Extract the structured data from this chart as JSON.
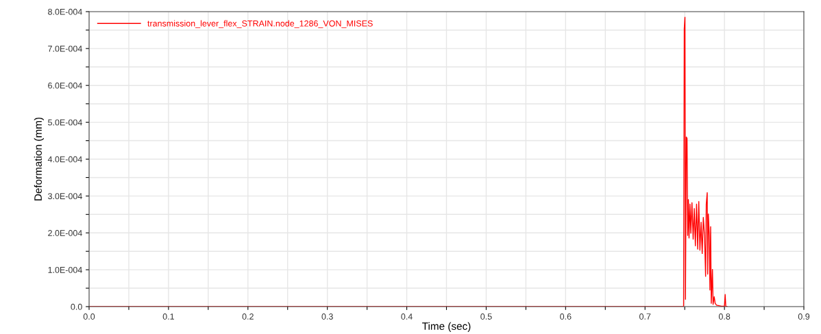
{
  "chart_data": {
    "type": "line",
    "xlabel": "Time (sec)",
    "ylabel": "Deformation (mm)",
    "xlim": [
      0,
      0.9
    ],
    "ylim": [
      0,
      0.0008
    ],
    "xticks": [
      {
        "value": 0,
        "label": "0.0"
      },
      {
        "value": 0.05,
        "label": null
      },
      {
        "value": 0.1,
        "label": "0.1"
      },
      {
        "value": 0.15,
        "label": null
      },
      {
        "value": 0.2,
        "label": "0.2"
      },
      {
        "value": 0.25,
        "label": null
      },
      {
        "value": 0.3,
        "label": "0.3"
      },
      {
        "value": 0.35,
        "label": null
      },
      {
        "value": 0.4,
        "label": "0.4"
      },
      {
        "value": 0.45,
        "label": null
      },
      {
        "value": 0.5,
        "label": "0.5"
      },
      {
        "value": 0.55,
        "label": null
      },
      {
        "value": 0.6,
        "label": "0.6"
      },
      {
        "value": 0.65,
        "label": null
      },
      {
        "value": 0.7,
        "label": "0.7"
      },
      {
        "value": 0.75,
        "label": null
      },
      {
        "value": 0.8,
        "label": "0.8"
      },
      {
        "value": 0.85,
        "label": null
      },
      {
        "value": 0.9,
        "label": "0.9"
      }
    ],
    "yticks": [
      {
        "value": 0,
        "label": "0.0"
      },
      {
        "value": 5e-05,
        "label": null
      },
      {
        "value": 0.0001,
        "label": "1.0E-004"
      },
      {
        "value": 0.00015,
        "label": null
      },
      {
        "value": 0.0002,
        "label": "2.0E-004"
      },
      {
        "value": 0.00025,
        "label": null
      },
      {
        "value": 0.0003,
        "label": "3.0E-004"
      },
      {
        "value": 0.00035,
        "label": null
      },
      {
        "value": 0.0004,
        "label": "4.0E-004"
      },
      {
        "value": 0.00045,
        "label": null
      },
      {
        "value": 0.0005,
        "label": "5.0E-004"
      },
      {
        "value": 0.00055,
        "label": null
      },
      {
        "value": 0.0006,
        "label": "6.0E-004"
      },
      {
        "value": 0.00065,
        "label": null
      },
      {
        "value": 0.0007,
        "label": "7.0E-004"
      },
      {
        "value": 0.00075,
        "label": null
      },
      {
        "value": 0.0008,
        "label": "8.0E-004"
      }
    ],
    "grid": true,
    "legend": "top left",
    "marker": "none",
    "line_style": "solid",
    "series": [
      {
        "name": "transmission_lever_flex_STRAIN.node_1286_VON_MISES",
        "color": "#ff0000",
        "x": [
          0,
          0.7486,
          0.7489,
          0.7494,
          0.7503,
          0.7509,
          0.752,
          0.7529,
          0.7537,
          0.7546,
          0.7554,
          0.7566,
          0.7577,
          0.7591,
          0.7606,
          0.762,
          0.7634,
          0.7649,
          0.7663,
          0.7677,
          0.7691,
          0.7706,
          0.772,
          0.7734,
          0.7749,
          0.7763,
          0.7771,
          0.7783,
          0.7789,
          0.7797,
          0.7809,
          0.7817,
          0.7826,
          0.7834,
          0.7849,
          0.7857,
          0.7871,
          0.7883,
          0.79,
          0.7963,
          0.8,
          0.8009,
          0.8017,
          0.8034
        ],
        "values": [
          0,
          0,
          0.000297,
          0.000754,
          0.000785,
          2e-05,
          0.00046,
          0.000456,
          0.000193,
          0.00029,
          0.000186,
          0.000278,
          0.000199,
          0.000282,
          0.000183,
          0.000266,
          0.000165,
          0.000278,
          0.000156,
          0.000285,
          0.000153,
          0.000229,
          0.000144,
          0.000242,
          0.000193,
          8.2e-05,
          0.000278,
          0.000309,
          8.8e-05,
          0.000251,
          0.000193,
          4.5e-05,
          0.000217,
          9e-06,
          0.000101,
          6e-06,
          2.7e-05,
          9e-06,
          4e-06,
          1e-06,
          1e-06,
          3.3e-05,
          1e-06,
          0
        ]
      }
    ]
  }
}
